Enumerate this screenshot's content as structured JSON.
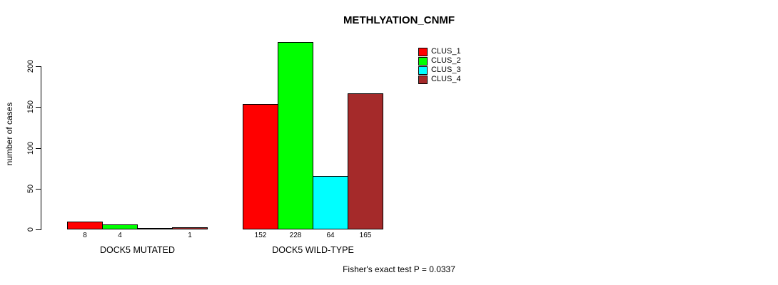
{
  "chart_data": {
    "type": "bar",
    "title": "METHLYATION_CNMF",
    "categories": [
      "DOCK5 MUTATED",
      "DOCK5 WILD-TYPE"
    ],
    "series": [
      {
        "name": "CLUS_1",
        "color": "#FF0000",
        "values": [
          8,
          152
        ]
      },
      {
        "name": "CLUS_2",
        "color": "#00FF00",
        "values": [
          4,
          228
        ]
      },
      {
        "name": "CLUS_3",
        "color": "#00FFFF",
        "values": [
          0,
          64
        ]
      },
      {
        "name": "CLUS_4",
        "color": "#A52A2A",
        "values": [
          1,
          165
        ]
      }
    ],
    "bar_value_labels": [
      [
        "8",
        "4",
        "",
        "1"
      ],
      [
        "152",
        "228",
        "64",
        "165"
      ]
    ],
    "xlabel": "",
    "ylabel": "number of cases",
    "ylim": [
      0,
      230
    ],
    "yticks": [
      0,
      50,
      100,
      150,
      200
    ],
    "grid": false,
    "legend_position": "top-right",
    "annotation": "Fisher's exact test P = 0.0337",
    "colors": {
      "background": "#FFFFFF",
      "axis": "#000000",
      "bar_border": "#000000"
    }
  }
}
